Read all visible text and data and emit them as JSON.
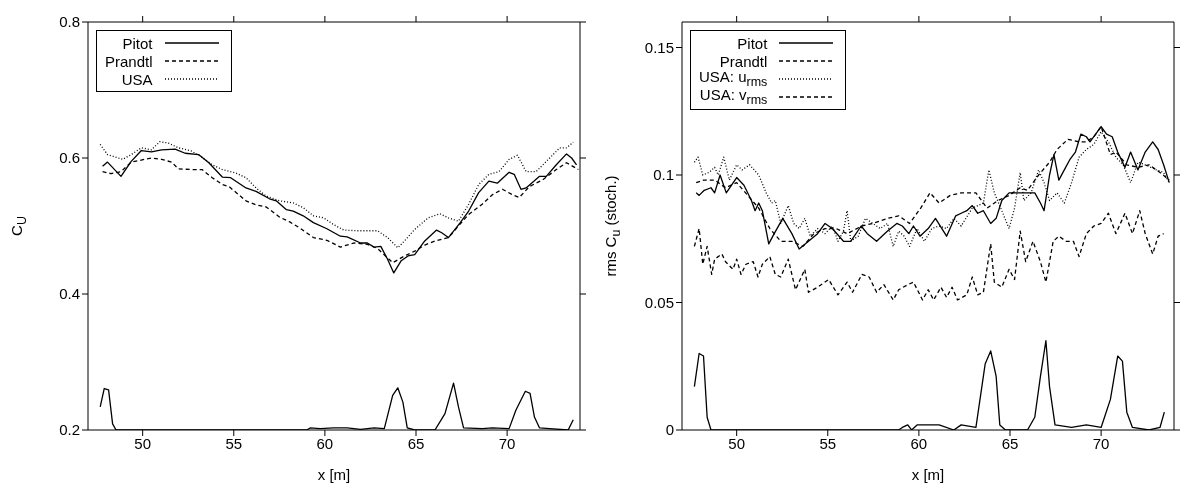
{
  "chart_data": [
    {
      "type": "line",
      "xlabel": "x [m]",
      "ylabel": "C$_{U}$",
      "xlim": [
        47,
        74
      ],
      "ylim": [
        0.2,
        0.8
      ],
      "xticks": [
        50,
        55,
        60,
        65,
        70
      ],
      "yticks": [
        0.2,
        0.4,
        0.6,
        0.8
      ],
      "legend": "top left",
      "marker": "none",
      "series": [
        {
          "name": "Pitot",
          "color": "#000000",
          "line_style": "solid",
          "x": [
            47.8,
            48.07,
            48.81,
            49.37,
            49.93,
            50.48,
            51.04,
            51.78,
            52.33,
            53.07,
            53.63,
            54.37,
            54.83,
            55.67,
            56.22,
            56.96,
            57.33,
            57.89,
            58.26,
            58.81,
            59.37,
            60.11,
            60.85,
            61.22,
            61.96,
            62.33,
            62.7,
            63.07,
            63.44,
            63.78,
            64.19,
            64.56,
            64.93,
            65.48,
            66.13,
            66.41,
            66.78,
            67.43,
            67.89,
            68.44,
            69,
            69.46,
            70.11,
            70.39,
            70.76,
            71.04,
            71.78,
            72.15,
            72.7,
            73.26,
            73.54,
            73.81
          ],
          "values": [
            0.588,
            0.594,
            0.573,
            0.595,
            0.611,
            0.609,
            0.612,
            0.613,
            0.607,
            0.605,
            0.593,
            0.572,
            0.571,
            0.556,
            0.551,
            0.54,
            0.537,
            0.524,
            0.522,
            0.515,
            0.505,
            0.496,
            0.485,
            0.484,
            0.475,
            0.475,
            0.469,
            0.47,
            0.451,
            0.431,
            0.449,
            0.456,
            0.458,
            0.478,
            0.494,
            0.49,
            0.483,
            0.505,
            0.522,
            0.549,
            0.566,
            0.563,
            0.579,
            0.576,
            0.554,
            0.556,
            0.573,
            0.573,
            0.59,
            0.606,
            0.6,
            0.59
          ]
        },
        {
          "name": "Prandtl",
          "color": "#000000",
          "line_style": "dashed",
          "x": [
            47.8,
            48.26,
            48.81,
            49.37,
            50.11,
            50.48,
            51.04,
            51.59,
            51.96,
            52.7,
            53.26,
            53.82,
            54.37,
            54.74,
            55.67,
            56.22,
            56.78,
            57.52,
            58.07,
            58.63,
            59.37,
            60.11,
            60.85,
            61.59,
            62.33,
            62.89,
            63.72,
            64.37,
            64.93,
            65.48,
            66.04,
            66.78,
            67.33,
            67.89,
            68.63,
            69.19,
            69.74,
            70.3,
            70.67,
            71.22,
            71.96,
            72.7,
            73.26,
            73.91
          ],
          "values": [
            0.58,
            0.577,
            0.58,
            0.594,
            0.598,
            0.6,
            0.598,
            0.594,
            0.584,
            0.583,
            0.583,
            0.571,
            0.561,
            0.558,
            0.537,
            0.531,
            0.528,
            0.513,
            0.506,
            0.497,
            0.483,
            0.479,
            0.469,
            0.475,
            0.473,
            0.467,
            0.446,
            0.456,
            0.463,
            0.472,
            0.478,
            0.483,
            0.5,
            0.517,
            0.532,
            0.546,
            0.554,
            0.546,
            0.542,
            0.558,
            0.568,
            0.583,
            0.593,
            0.583
          ]
        },
        {
          "name": "USA",
          "color": "#000000",
          "line_style": "dotted",
          "x": [
            47.67,
            48.07,
            48.91,
            49.37,
            49.93,
            50.48,
            50.94,
            51.41,
            51.96,
            52.7,
            53.26,
            53.82,
            54.37,
            55.11,
            55.67,
            56.22,
            56.78,
            57.52,
            58.26,
            58.81,
            59.37,
            59.93,
            60.48,
            61.04,
            61.78,
            62.89,
            63.44,
            64,
            64.37,
            64.93,
            65.67,
            66.31,
            66.78,
            67.33,
            67.89,
            68.44,
            69,
            69.56,
            70.11,
            70.57,
            71.04,
            71.59,
            72.15,
            72.89,
            73.26,
            73.63
          ],
          "values": [
            0.62,
            0.605,
            0.598,
            0.605,
            0.615,
            0.612,
            0.624,
            0.622,
            0.615,
            0.61,
            0.601,
            0.59,
            0.583,
            0.578,
            0.571,
            0.556,
            0.544,
            0.537,
            0.534,
            0.527,
            0.515,
            0.512,
            0.502,
            0.494,
            0.493,
            0.493,
            0.483,
            0.468,
            0.478,
            0.495,
            0.512,
            0.518,
            0.512,
            0.507,
            0.532,
            0.561,
            0.576,
            0.58,
            0.598,
            0.604,
            0.58,
            0.58,
            0.595,
            0.615,
            0.615,
            0.623
          ]
        },
        {
          "color": "#000000",
          "line_style": "solid",
          "x": [
            47.67,
            47.89,
            48.13,
            48.35,
            48.54,
            59,
            59.19,
            59.74,
            60.48,
            61.22,
            61.96,
            62.7,
            63.26,
            63.72,
            64,
            64.28,
            64.52,
            64.93,
            66.04,
            66.59,
            67.06,
            67.33,
            67.61,
            68.63,
            69.19,
            70.11,
            70.48,
            71,
            71.26,
            71.5,
            71.78,
            72.33,
            73.35,
            73.63
          ],
          "values": [
            0.234,
            0.261,
            0.259,
            0.209,
            0.2,
            0.2,
            0.203,
            0.202,
            0.203,
            0.203,
            0.201,
            0.203,
            0.202,
            0.251,
            0.262,
            0.241,
            0.203,
            0.2,
            0.2,
            0.224,
            0.269,
            0.234,
            0.203,
            0.202,
            0.203,
            0.202,
            0.229,
            0.257,
            0.254,
            0.219,
            0.203,
            0.202,
            0.2,
            0.215
          ]
        }
      ]
    },
    {
      "type": "line",
      "xlabel": "x [m]",
      "ylabel": "rms C$_{u}$ (stoch.)",
      "xlim": [
        47,
        74
      ],
      "ylim": [
        0,
        0.16
      ],
      "xticks": [
        50,
        55,
        60,
        65,
        70
      ],
      "yticks": [
        0,
        0.05,
        0.1,
        0.15
      ],
      "legend": "top left",
      "marker": "none",
      "series": [
        {
          "name": "Pitot",
          "color": "#000000",
          "line_style": "solid",
          "x": [
            47.78,
            47.94,
            48.22,
            48.59,
            48.79,
            49.09,
            49.43,
            50,
            50.4,
            50.81,
            51.01,
            51.21,
            51.41,
            51.76,
            52.06,
            52.53,
            53.03,
            53.43,
            53.94,
            54.44,
            54.85,
            55.25,
            55.86,
            56.26,
            56.83,
            57.17,
            57.68,
            58.28,
            58.79,
            59.09,
            59.45,
            59.7,
            60.06,
            60.51,
            60.91,
            61.52,
            62.02,
            62.32,
            62.63,
            62.93,
            63.23,
            63.54,
            63.94,
            64.24,
            64.55,
            64.95,
            65.35,
            65.66,
            65.96,
            66.36,
            66.67,
            66.87,
            67.17,
            67.41,
            67.68,
            67.98,
            68.28,
            68.59,
            68.89,
            69.19,
            69.39,
            69.7,
            70,
            70.3,
            70.61,
            70.91,
            71.31,
            71.62,
            72.02,
            72.42,
            72.83,
            73.13,
            73.43,
            73.74
          ],
          "values": [
            0.093,
            0.092,
            0.094,
            0.095,
            0.093,
            0.1,
            0.093,
            0.099,
            0.096,
            0.09,
            0.086,
            0.089,
            0.086,
            0.073,
            0.077,
            0.083,
            0.077,
            0.071,
            0.074,
            0.077,
            0.081,
            0.079,
            0.074,
            0.074,
            0.08,
            0.077,
            0.074,
            0.078,
            0.081,
            0.08,
            0.077,
            0.08,
            0.076,
            0.079,
            0.083,
            0.076,
            0.084,
            0.085,
            0.086,
            0.088,
            0.085,
            0.086,
            0.081,
            0.083,
            0.09,
            0.093,
            0.093,
            0.093,
            0.093,
            0.093,
            0.089,
            0.086,
            0.1,
            0.108,
            0.098,
            0.102,
            0.106,
            0.109,
            0.116,
            0.115,
            0.113,
            0.116,
            0.119,
            0.116,
            0.115,
            0.109,
            0.103,
            0.109,
            0.102,
            0.109,
            0.113,
            0.11,
            0.104,
            0.097
          ]
        },
        {
          "name": "Prandtl",
          "color": "#000000",
          "line_style": "dashed",
          "x": [
            47.78,
            48.18,
            48.79,
            49.39,
            50,
            50.61,
            51.21,
            51.82,
            52.42,
            53.03,
            53.64,
            54.24,
            54.85,
            55.45,
            56.06,
            56.87,
            57.47,
            58.28,
            58.89,
            59.49,
            60.1,
            60.61,
            61.11,
            61.72,
            62.32,
            63.13,
            63.74,
            64.34,
            64.95,
            65.56,
            65.96,
            66.57,
            67.17,
            67.58,
            68.18,
            68.79,
            69.19,
            69.6,
            70,
            70.51,
            70.81,
            71.41,
            72.02,
            72.63,
            73.23,
            73.74
          ],
          "values": [
            0.097,
            0.098,
            0.098,
            0.095,
            0.097,
            0.092,
            0.087,
            0.079,
            0.074,
            0.074,
            0.072,
            0.077,
            0.079,
            0.079,
            0.077,
            0.08,
            0.081,
            0.083,
            0.084,
            0.081,
            0.087,
            0.093,
            0.089,
            0.092,
            0.093,
            0.093,
            0.087,
            0.09,
            0.092,
            0.095,
            0.094,
            0.1,
            0.105,
            0.11,
            0.114,
            0.113,
            0.113,
            0.115,
            0.119,
            0.108,
            0.109,
            0.104,
            0.103,
            0.104,
            0.101,
            0.098
          ]
        },
        {
          "name": "USA: u$_{rms}$",
          "color": "#000000",
          "line_style": "dotted",
          "x": [
            47.68,
            47.88,
            48.14,
            48.48,
            48.79,
            48.99,
            49.29,
            49.6,
            50,
            50.3,
            50.71,
            51.21,
            51.62,
            51.92,
            52.12,
            52.42,
            52.83,
            53.13,
            53.43,
            53.74,
            54.04,
            54.44,
            54.85,
            55.25,
            55.56,
            55.86,
            56.06,
            56.26,
            56.67,
            57.07,
            57.47,
            57.88,
            58.28,
            58.59,
            58.89,
            59.19,
            59.49,
            59.9,
            60.3,
            60.71,
            61.11,
            61.52,
            61.92,
            62.32,
            62.93,
            63.54,
            63.84,
            64.14,
            64.55,
            64.95,
            65.25,
            65.56,
            65.76,
            66.16,
            66.57,
            66.87,
            67.17,
            67.58,
            67.98,
            68.38,
            68.79,
            69.19,
            69.6,
            70,
            70.4,
            70.81,
            71.21,
            71.62,
            72.02,
            72.42,
            73.03,
            73.43,
            73.74
          ],
          "values": [
            0.105,
            0.107,
            0.1,
            0.101,
            0.103,
            0.1,
            0.107,
            0.098,
            0.104,
            0.102,
            0.104,
            0.1,
            0.093,
            0.089,
            0.09,
            0.081,
            0.088,
            0.081,
            0.079,
            0.083,
            0.076,
            0.079,
            0.077,
            0.08,
            0.074,
            0.078,
            0.086,
            0.074,
            0.076,
            0.083,
            0.081,
            0.079,
            0.081,
            0.072,
            0.078,
            0.076,
            0.072,
            0.079,
            0.074,
            0.079,
            0.08,
            0.079,
            0.083,
            0.08,
            0.087,
            0.089,
            0.102,
            0.093,
            0.086,
            0.079,
            0.087,
            0.101,
            0.09,
            0.093,
            0.102,
            0.097,
            0.09,
            0.093,
            0.089,
            0.097,
            0.107,
            0.11,
            0.112,
            0.117,
            0.113,
            0.107,
            0.104,
            0.097,
            0.105,
            0.104,
            0.102,
            0.101,
            0.097
          ]
        },
        {
          "name": "USA: v$_{rms}$",
          "color": "#000000",
          "line_style": "dashed",
          "x": [
            47.68,
            47.94,
            48.14,
            48.38,
            48.63,
            48.79,
            49.19,
            49.39,
            49.8,
            50,
            50.24,
            50.51,
            50.91,
            51.17,
            51.41,
            51.82,
            52.12,
            52.42,
            52.83,
            53.23,
            53.74,
            53.94,
            54.44,
            55.05,
            55.56,
            56.06,
            56.36,
            56.87,
            57.27,
            57.68,
            58.08,
            58.59,
            58.89,
            59.39,
            59.7,
            60.2,
            60.51,
            60.81,
            61.21,
            61.52,
            61.82,
            62.12,
            62.63,
            62.93,
            63.23,
            63.54,
            63.94,
            64.14,
            64.55,
            64.95,
            65.25,
            65.56,
            65.86,
            66.26,
            66.67,
            66.97,
            67.37,
            67.68,
            68.08,
            68.48,
            68.79,
            69.19,
            69.6,
            70,
            70.4,
            70.81,
            71.31,
            71.72,
            72.12,
            72.42,
            72.83,
            73.13,
            73.43
          ],
          "values": [
            0.072,
            0.079,
            0.065,
            0.072,
            0.061,
            0.067,
            0.069,
            0.066,
            0.063,
            0.067,
            0.061,
            0.065,
            0.066,
            0.06,
            0.065,
            0.068,
            0.061,
            0.06,
            0.067,
            0.055,
            0.063,
            0.054,
            0.056,
            0.059,
            0.053,
            0.058,
            0.054,
            0.061,
            0.06,
            0.054,
            0.057,
            0.051,
            0.055,
            0.057,
            0.058,
            0.051,
            0.055,
            0.051,
            0.056,
            0.052,
            0.056,
            0.051,
            0.053,
            0.06,
            0.053,
            0.054,
            0.073,
            0.058,
            0.056,
            0.063,
            0.059,
            0.078,
            0.066,
            0.074,
            0.066,
            0.058,
            0.074,
            0.076,
            0.074,
            0.074,
            0.068,
            0.077,
            0.08,
            0.081,
            0.085,
            0.077,
            0.085,
            0.077,
            0.086,
            0.077,
            0.069,
            0.076,
            0.077
          ]
        },
        {
          "color": "#000000",
          "line_style": "solid",
          "x": [
            47.68,
            47.94,
            48.18,
            48.38,
            48.59,
            58.89,
            59.09,
            59.39,
            59.6,
            59.9,
            60.51,
            61.11,
            61.92,
            62.32,
            63.13,
            63.64,
            63.94,
            64.24,
            64.44,
            64.75,
            65.96,
            66.36,
            66.67,
            66.97,
            67.17,
            67.47,
            68.38,
            69.19,
            70,
            70.51,
            70.91,
            71.17,
            71.41,
            71.72,
            72.63,
            73.23,
            73.47
          ],
          "values": [
            0.017,
            0.03,
            0.029,
            0.005,
            0,
            0,
            0.001,
            0.002,
            0,
            0.002,
            0.002,
            0.002,
            0,
            0.002,
            0.001,
            0.026,
            0.031,
            0.021,
            0.002,
            0,
            0,
            0.005,
            0.021,
            0.035,
            0.017,
            0.002,
            0.001,
            0.002,
            0.001,
            0.012,
            0.029,
            0.027,
            0.007,
            0.001,
            0,
            0.001,
            0.007
          ]
        }
      ]
    }
  ]
}
